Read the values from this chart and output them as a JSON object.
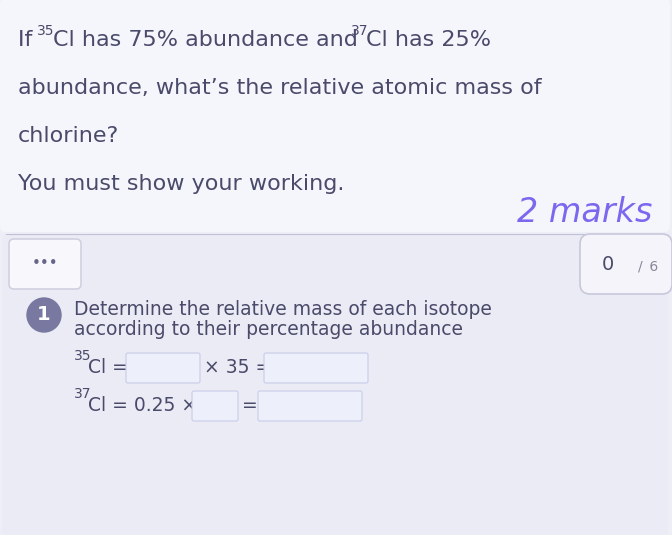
{
  "bg_page": "#eeeef6",
  "top_box_bg": "#f5f6fc",
  "bottom_box_bg": "#eaebf4",
  "text_color": "#4a4a6a",
  "marks_color": "#7b68ee",
  "step_circle_color": "#7878a0",
  "box_fill": "#edf0fb",
  "box_border": "#c8cce8",
  "dots_box_fill": "#f8f8fc",
  "dots_box_border": "#d0d0e0",
  "score_box_fill": "#f4f4fa",
  "score_box_border": "#c8c8dc",
  "white": "#ffffff",
  "font_size_main": 16,
  "font_size_marks": 24,
  "font_size_step": 13.5,
  "font_size_sup": 10,
  "line1a": "If ",
  "line1b": "35",
  "line1c": "Cl has 75% abundance and ",
  "line1d": "37",
  "line1e": "Cl has 25%",
  "line2": "abundance, what’s the relative atomic mass of",
  "line3": "chlorine?",
  "line4": "You must show your working.",
  "marks_text": "2 marks",
  "dots_text": "•••",
  "score_num": "0",
  "score_denom": "/  6",
  "step_num": "1",
  "step_line1": "Determine the relative mass of each isotope",
  "step_line2": "according to their percentage abundance",
  "cl35_sup": "35",
  "cl35_base": "Cl =",
  "cl35_op": "× 35 =",
  "cl37_sup": "37",
  "cl37_base": "Cl = 0.25 ×",
  "cl37_eq": "="
}
